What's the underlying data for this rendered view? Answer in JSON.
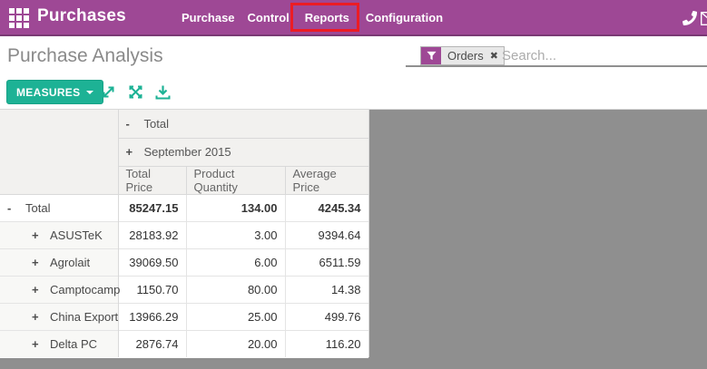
{
  "nav": {
    "brand": "Purchases",
    "menu": [
      {
        "label": "Purchase",
        "highlighted": false
      },
      {
        "label": "Control",
        "highlighted": false
      },
      {
        "label": "Reports",
        "highlighted": true
      },
      {
        "label": "Configuration",
        "highlighted": false
      }
    ]
  },
  "control_panel": {
    "title": "Purchase Analysis",
    "search": {
      "facet": {
        "label": "Orders",
        "remove_icon": "✖"
      },
      "placeholder": "Search..."
    },
    "toolbar": {
      "measures_label": "MEASURES"
    }
  },
  "pivot": {
    "type": "table",
    "col_root": {
      "sign": "-",
      "label": "Total"
    },
    "col_group": {
      "sign": "+",
      "label": "September 2015"
    },
    "measures": [
      "Total Price",
      "Product Quantity",
      "Average Price"
    ],
    "rows": [
      {
        "sign": "-",
        "label": "Total",
        "indent": 0,
        "bold": true,
        "values": [
          "85247.15",
          "134.00",
          "4245.34"
        ]
      },
      {
        "sign": "+",
        "label": "ASUSTeK",
        "indent": 1,
        "bold": false,
        "values": [
          "28183.92",
          "3.00",
          "9394.64"
        ]
      },
      {
        "sign": "+",
        "label": "Agrolait",
        "indent": 1,
        "bold": false,
        "values": [
          "39069.50",
          "6.00",
          "6511.59"
        ]
      },
      {
        "sign": "+",
        "label": "Camptocamp",
        "indent": 1,
        "bold": false,
        "values": [
          "1150.70",
          "80.00",
          "14.38"
        ]
      },
      {
        "sign": "+",
        "label": "China Export",
        "indent": 1,
        "bold": false,
        "values": [
          "13966.29",
          "25.00",
          "499.76"
        ]
      },
      {
        "sign": "+",
        "label": "Delta PC",
        "indent": 1,
        "bold": false,
        "values": [
          "2876.74",
          "20.00",
          "116.20"
        ]
      }
    ]
  },
  "colors": {
    "navbar_purple": "#9e4895",
    "accent_teal": "#1db295",
    "annotation_red": "#ec1c24",
    "matte_gray": "#8f8f8f"
  }
}
